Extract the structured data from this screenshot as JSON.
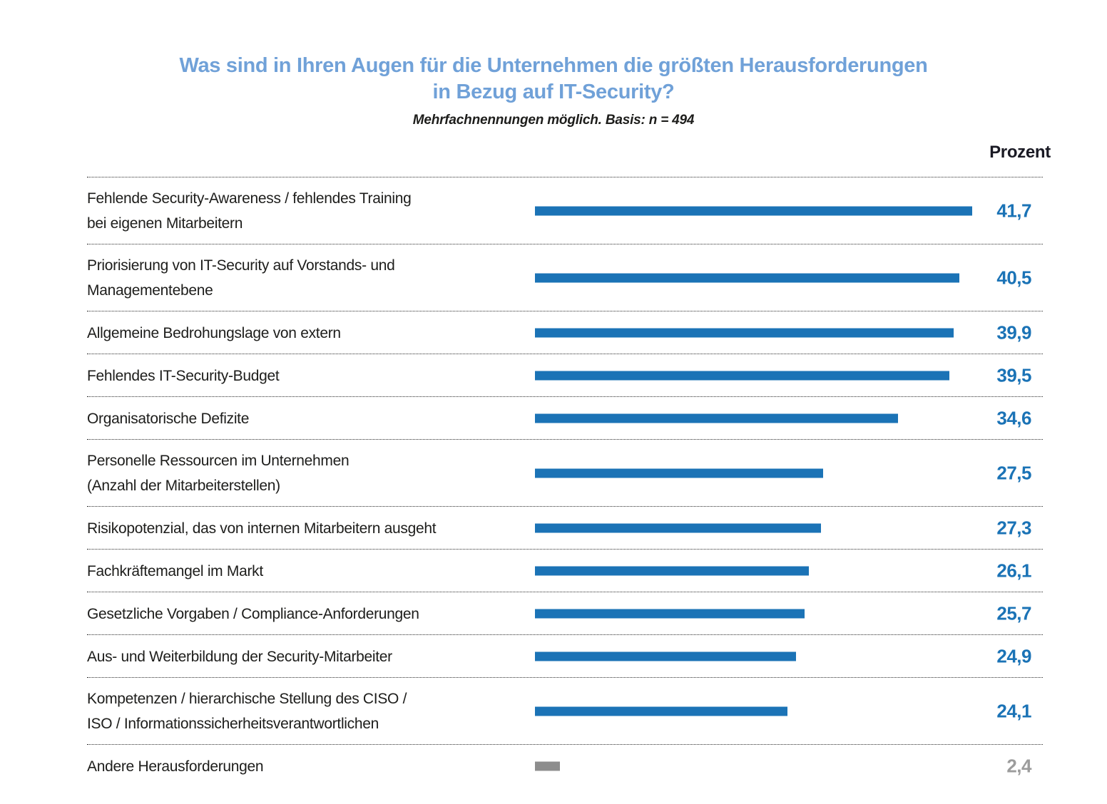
{
  "title": {
    "line1": "Was sind in Ihren Augen für die Unternehmen die größten Herausforderungen",
    "line2": "in Bezug auf IT-Security?"
  },
  "subtitle": "Mehrfachnennungen möglich. Basis: n = 494",
  "column_header": "Prozent",
  "colors": {
    "title_blue": "#70a1d8",
    "bar_blue": "#1b73b6",
    "value_blue": "#1b73b6",
    "bar_gray": "#8d8d8d",
    "value_gray": "#9c9c9c",
    "text_black": "#1d1d1b"
  },
  "chart_data": {
    "type": "bar",
    "orientation": "horizontal",
    "title": "Was sind in Ihren Augen für die Unternehmen die größten Herausforderungen in Bezug auf IT-Security?",
    "subtitle": "Mehrfachnennungen möglich. Basis: n = 494",
    "unit_label": "Prozent",
    "xlim": [
      0,
      41.7
    ],
    "grid": "dotted row separators",
    "legend": "none",
    "categories": [
      "Fehlende Security-Awareness / fehlendes Training bei eigenen Mitarbeitern",
      "Priorisierung von IT-Security auf Vorstands- und Managementebene",
      "Allgemeine Bedrohungslage von extern",
      "Fehlendes IT-Security-Budget",
      "Organisatorische Defizite",
      "Personelle Ressourcen im Unternehmen (Anzahl der Mitarbeiterstellen)",
      "Risikopotenzial, das von internen Mitarbeitern ausgeht",
      "Fachkräftemangel im Markt",
      "Gesetzliche Vorgaben / Compliance-Anforderungen",
      "Aus- und Weiterbildung der Security-Mitarbeiter",
      "Kompetenzen / hierarchische Stellung des CISO / ISO / Informationssicherheitsverantwortlichen",
      "Andere Herausforderungen"
    ],
    "values": [
      41.7,
      40.5,
      39.9,
      39.5,
      34.6,
      27.5,
      27.3,
      26.1,
      25.7,
      24.9,
      24.1,
      2.4
    ],
    "rows": [
      {
        "label": "Fehlende Security-Awareness / fehlendes Training\nbei eigenen Mitarbeitern",
        "value": 41.7,
        "display": "41,7",
        "muted": false
      },
      {
        "label": "Priorisierung von IT-Security auf Vorstands- und\nManagementebene",
        "value": 40.5,
        "display": "40,5",
        "muted": false
      },
      {
        "label": "Allgemeine Bedrohungslage von extern",
        "value": 39.9,
        "display": "39,9",
        "muted": false
      },
      {
        "label": "Fehlendes IT-Security-Budget",
        "value": 39.5,
        "display": "39,5",
        "muted": false
      },
      {
        "label": "Organisatorische Defizite",
        "value": 34.6,
        "display": "34,6",
        "muted": false
      },
      {
        "label": "Personelle Ressourcen im Unternehmen\n(Anzahl der Mitarbeiterstellen)",
        "value": 27.5,
        "display": "27,5",
        "muted": false
      },
      {
        "label": "Risikopotenzial, das von internen Mitarbeitern ausgeht",
        "value": 27.3,
        "display": "27,3",
        "muted": false
      },
      {
        "label": "Fachkräftemangel im Markt",
        "value": 26.1,
        "display": "26,1",
        "muted": false
      },
      {
        "label": "Gesetzliche Vorgaben / Compliance-Anforderungen",
        "value": 25.7,
        "display": "25,7",
        "muted": false
      },
      {
        "label": "Aus- und Weiterbildung der Security-Mitarbeiter",
        "value": 24.9,
        "display": "24,9",
        "muted": false
      },
      {
        "label": "Kompetenzen / hierarchische Stellung des CISO /\nISO / Informationssicherheitsverantwortlichen",
        "value": 24.1,
        "display": "24,1",
        "muted": false
      },
      {
        "label": "Andere Herausforderungen",
        "value": 2.4,
        "display": "2,4",
        "muted": true
      }
    ]
  }
}
